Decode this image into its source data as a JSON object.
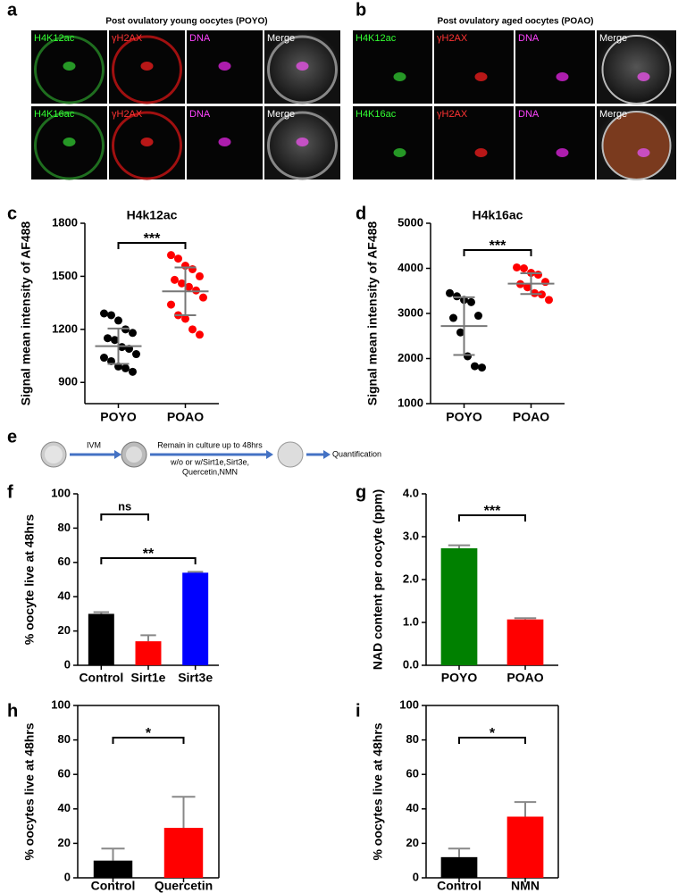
{
  "panel_letters": [
    "a",
    "b",
    "c",
    "d",
    "e",
    "f",
    "g",
    "h",
    "i"
  ],
  "images": [
    {
      "title": "Post ovulatory young oocytes (POYO)",
      "rows": [
        [
          "H4K12ac",
          "γH2AX",
          "DNA",
          "Merge"
        ],
        [
          "H4K16ac",
          "γH2AX",
          "DNA",
          "Merge"
        ]
      ]
    },
    {
      "title": "Post ovulatory aged oocytes (POAO)",
      "rows": [
        [
          "H4K12ac",
          "γH2AX",
          "DNA",
          "Merge"
        ],
        [
          "H4K16ac",
          "γH2AX",
          "DNA",
          "Merge"
        ]
      ]
    }
  ],
  "diagram": {
    "steps": [
      "IVM",
      "Remain in culture up to 48hrs",
      "w/o or w/Sirt1e,Sirt3e,",
      "Quercetin,NMN",
      "Quantification"
    ]
  },
  "chart_data": [
    {
      "type": "dot",
      "title": "H4k12ac",
      "y_label": "Signal mean intensity of AF488",
      "categories": [
        "POYO",
        "POAO"
      ],
      "groups": [
        {
          "color": "#000000",
          "values": [
            1290,
            1280,
            1250,
            1200,
            1180,
            1150,
            1140,
            1100,
            1090,
            1060,
            1040,
            1020,
            990,
            980,
            960
          ],
          "mean": 1105,
          "sd": 100
        },
        {
          "color": "#ff0000",
          "values": [
            1620,
            1600,
            1560,
            1540,
            1500,
            1480,
            1460,
            1440,
            1420,
            1380,
            1340,
            1280,
            1260,
            1200,
            1170
          ],
          "mean": 1415,
          "sd": 135
        }
      ],
      "ylim": [
        780,
        1800
      ],
      "yticks": [
        900,
        1200,
        1500,
        1800
      ],
      "significance": [
        {
          "label": "***",
          "between": [
            "POYO",
            "POAO"
          ]
        }
      ]
    },
    {
      "type": "dot",
      "title": "H4k16ac",
      "y_label": "Signal mean intensity of AF488",
      "categories": [
        "POYO",
        "POAO"
      ],
      "groups": [
        {
          "color": "#000000",
          "values": [
            3450,
            3380,
            3300,
            3250,
            2950,
            2900,
            2580,
            2050,
            1830,
            1800
          ],
          "mean": 2720,
          "sd": 640
        },
        {
          "color": "#ff0000",
          "values": [
            4020,
            4000,
            3900,
            3860,
            3700,
            3650,
            3580,
            3450,
            3420,
            3300
          ],
          "mean": 3660,
          "sd": 230
        }
      ],
      "ylim": [
        1000,
        5000
      ],
      "yticks": [
        1000,
        2000,
        3000,
        4000,
        5000
      ],
      "significance": [
        {
          "label": "***",
          "between": [
            "POYO",
            "POAO"
          ]
        }
      ]
    },
    {
      "type": "bar",
      "y_label": "% oocyte live at 48hrs",
      "categories": [
        "Control",
        "Sirt1e",
        "Sirt3e"
      ],
      "values": [
        30,
        14,
        54
      ],
      "errors": [
        1,
        3.5,
        0.5
      ],
      "colors": [
        "#000000",
        "#ff0000",
        "#0000ff"
      ],
      "ylim": [
        0,
        100
      ],
      "yticks": [
        0,
        20,
        40,
        60,
        80,
        100
      ],
      "significance": [
        {
          "label": "ns",
          "between": [
            "Control",
            "Sirt1e"
          ]
        },
        {
          "label": "**",
          "between": [
            "Control",
            "Sirt3e"
          ]
        }
      ]
    },
    {
      "type": "bar",
      "y_label": "NAD content per oocyte (ppm)",
      "categories": [
        "POYO",
        "POAO"
      ],
      "values": [
        2.73,
        1.07
      ],
      "errors": [
        0.07,
        0.03
      ],
      "colors": [
        "#008000",
        "#ff0000"
      ],
      "ylim": [
        0,
        4
      ],
      "yticks": [
        {
          "value": 0,
          "label": "0.0"
        },
        {
          "value": 1,
          "label": "1.0"
        },
        {
          "value": 2,
          "label": "2.0"
        },
        {
          "value": 3,
          "label": "3.0"
        },
        {
          "value": 4,
          "label": "4.0"
        }
      ],
      "significance": [
        {
          "label": "***",
          "between": [
            "POYO",
            "POAO"
          ]
        }
      ]
    },
    {
      "type": "bar",
      "y_label": "% oocytes live at 48hrs",
      "categories": [
        "Control",
        "Quercetin"
      ],
      "values": [
        10,
        29
      ],
      "errors": [
        7,
        18
      ],
      "colors": [
        "#000000",
        "#ff0000"
      ],
      "ylim": [
        0,
        100
      ],
      "yticks": [
        0,
        20,
        40,
        60,
        80,
        100
      ],
      "frame": true,
      "significance": [
        {
          "label": "*",
          "between": [
            "Control",
            "Quercetin"
          ]
        }
      ]
    },
    {
      "type": "bar",
      "y_label": "% oocytes live at 48hrs",
      "categories": [
        "Control",
        "NMN"
      ],
      "values": [
        12,
        35.5
      ],
      "errors": [
        5,
        8.5
      ],
      "colors": [
        "#000000",
        "#ff0000"
      ],
      "ylim": [
        0,
        100
      ],
      "yticks": [
        0,
        20,
        40,
        60,
        80,
        100
      ],
      "frame": true,
      "significance": [
        {
          "label": "*",
          "between": [
            "Control",
            "NMN"
          ]
        }
      ]
    }
  ]
}
